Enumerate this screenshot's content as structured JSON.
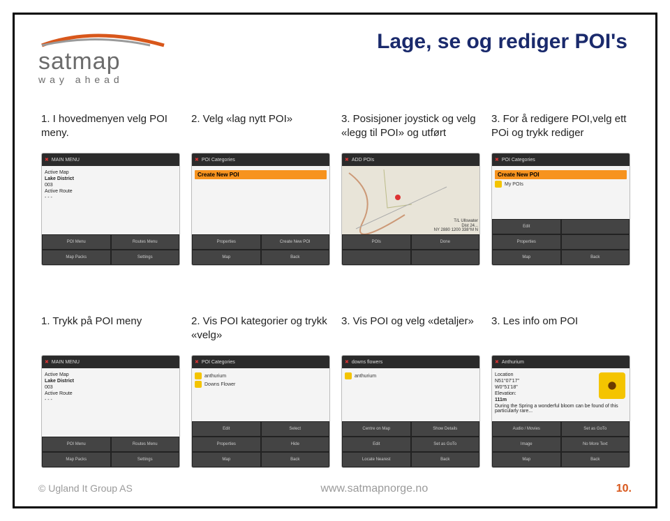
{
  "brand": {
    "name": "satmap",
    "tagline": "way ahead",
    "swoosh_color": "#d8571b"
  },
  "title": "Lage, se og rediger POI's",
  "title_color": "#1a2a6c",
  "accent_orange": "#f7931e",
  "row1": [
    {
      "caption": "1. I hovedmenyen velg POI meny.",
      "top": "MAIN MENU",
      "body_lines": [
        "Active Map",
        "Lake District",
        "003",
        "",
        "Active Route",
        "- - -"
      ],
      "buttons1": [
        "POI Menu",
        "Routes Menu"
      ],
      "buttons2": [
        "Map Packs",
        "Settings"
      ]
    },
    {
      "caption": "2. Velg «lag nytt POI»",
      "top": "POI Categories",
      "orange": "Create New POI",
      "buttons1": [
        "Properties",
        "Create New POI"
      ],
      "buttons2": [
        "Map",
        "Back"
      ]
    },
    {
      "caption": "3. Posisjoner joystick og velg «legg til POI» og utført",
      "top": "ADD POIs",
      "is_map": true,
      "map_info": [
        "T/L Ullswater",
        "Dist 24...",
        "NY 2880 1200  338°M N"
      ],
      "buttons1": [
        "POIs",
        "Done"
      ],
      "buttons2": [
        "",
        ""
      ]
    },
    {
      "caption": "3. For å redigere POI,velg ett POi og trykk rediger",
      "top": "POI Categories",
      "orange": "Create New POI",
      "yellow_items": [
        "My POIs"
      ],
      "buttons1": [
        "Edit",
        ""
      ],
      "buttons2": [
        "Properties",
        ""
      ],
      "buttons3": [
        "Map",
        "Back"
      ]
    }
  ],
  "row2": [
    {
      "caption": "1. Trykk på POI meny",
      "top": "MAIN MENU",
      "body_lines": [
        "Active Map",
        "Lake District",
        "003",
        "",
        "Active Route",
        "- - -"
      ],
      "buttons1": [
        "POI Menu",
        "Routes Menu"
      ],
      "buttons2": [
        "Map Packs",
        "Settings"
      ]
    },
    {
      "caption": "2. Vis POI kategorier og trykk «velg»",
      "top": "POI Categories",
      "yellow_items": [
        "anthurium",
        "Downs Flower"
      ],
      "buttons1": [
        "Edit",
        "Select"
      ],
      "buttons2": [
        "Properties",
        "Hide"
      ],
      "buttons3": [
        "Map",
        "Back"
      ]
    },
    {
      "caption": "3. Vis POI og velg «detaljer»",
      "top": "downs flowers",
      "yellow_items": [
        "anthurium"
      ],
      "buttons1": [
        "Centre on Map",
        "Show Details"
      ],
      "buttons2": [
        "Edit",
        "Set as GoTo"
      ],
      "buttons3": [
        "Locate Nearest",
        "Back"
      ]
    },
    {
      "caption": "3. Les info om POI",
      "top": "Anthurium",
      "has_flower": true,
      "detail_lines": [
        "Location",
        "N51°07'17\"",
        "W0°51'18\"",
        "Elevation:",
        "111m",
        "During the Spring a wonderful bloom can be found of this particularly rare..."
      ],
      "buttons1": [
        "Audio / Movies",
        "Set as GoTo"
      ],
      "buttons2": [
        "Image",
        "No More Text"
      ],
      "buttons3": [
        "Map",
        "Back"
      ]
    }
  ],
  "footer": {
    "left": "© Ugland It Group AS",
    "center": "www.satmapnorge.no",
    "page": "10."
  }
}
